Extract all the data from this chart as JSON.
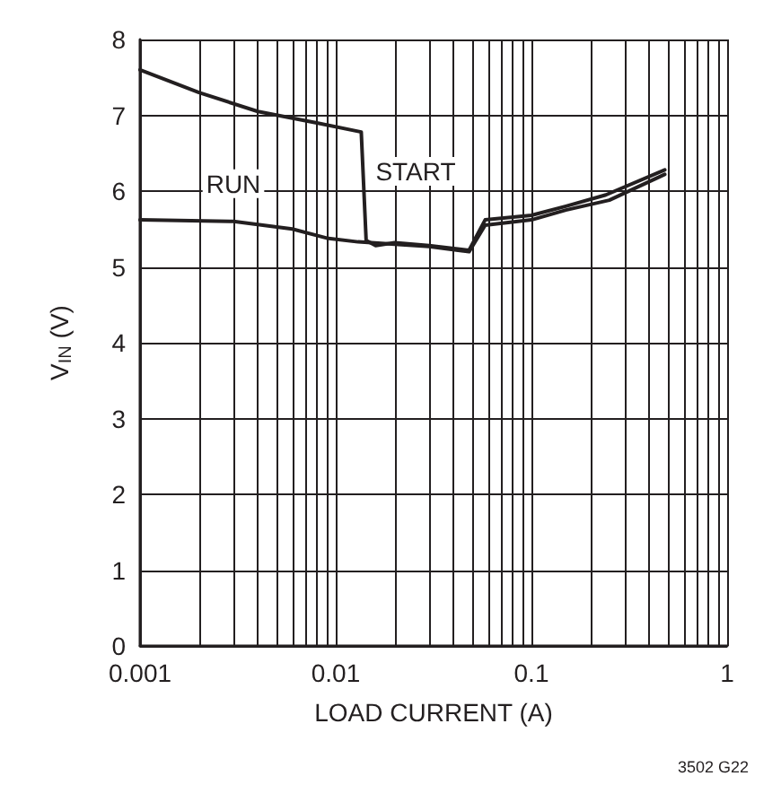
{
  "chart_data": {
    "type": "line",
    "xlabel": "LOAD CURRENT (A)",
    "ylabel": "V$_{IN}$ (V)",
    "log": "x",
    "grid": true,
    "legend": false,
    "marker": "none",
    "line_style": "solid",
    "xlim": [
      0.001,
      1
    ],
    "ylim": [
      0,
      8
    ],
    "xticks": [
      0.001,
      {
        "value": 0.002,
        "label": null
      },
      {
        "value": 0.003,
        "label": null
      },
      {
        "value": 0.004,
        "label": null
      },
      {
        "value": 0.005,
        "label": null
      },
      {
        "value": 0.006,
        "label": null
      },
      {
        "value": 0.007,
        "label": null
      },
      {
        "value": 0.008,
        "label": null
      },
      {
        "value": 0.009,
        "label": null
      },
      0.01,
      {
        "value": 0.02,
        "label": null
      },
      {
        "value": 0.03,
        "label": null
      },
      {
        "value": 0.04,
        "label": null
      },
      {
        "value": 0.05,
        "label": null
      },
      {
        "value": 0.06,
        "label": null
      },
      {
        "value": 0.07,
        "label": null
      },
      {
        "value": 0.08,
        "label": null
      },
      {
        "value": 0.09,
        "label": null
      },
      0.1,
      {
        "value": 0.2,
        "label": null
      },
      {
        "value": 0.3,
        "label": null
      },
      {
        "value": 0.4,
        "label": null
      },
      {
        "value": 0.5,
        "label": null
      },
      {
        "value": 0.6,
        "label": null
      },
      {
        "value": 0.7,
        "label": null
      },
      {
        "value": 0.8,
        "label": null
      },
      {
        "value": 0.9,
        "label": null
      },
      1
    ],
    "yticks": [
      0,
      1,
      2,
      3,
      4,
      5,
      6,
      7,
      8
    ],
    "series": [
      {
        "name": "START",
        "color": "#231f20",
        "x": [
          0.001,
          0.002,
          0.004,
          0.008,
          0.0135,
          0.0143,
          0.016,
          0.02,
          0.03,
          0.048,
          0.058,
          0.1,
          0.15,
          0.24,
          0.48
        ],
        "values": [
          7.6,
          7.3,
          7.05,
          6.9,
          6.78,
          5.35,
          5.28,
          5.32,
          5.28,
          5.22,
          5.62,
          5.68,
          5.8,
          5.95,
          6.28
        ]
      },
      {
        "name": "RUN",
        "color": "#231f20",
        "x": [
          0.001,
          0.003,
          0.006,
          0.009,
          0.013,
          0.02,
          0.03,
          0.048,
          0.058,
          0.1,
          0.15,
          0.25,
          0.48
        ],
        "values": [
          5.62,
          5.6,
          5.5,
          5.38,
          5.33,
          5.3,
          5.27,
          5.2,
          5.55,
          5.62,
          5.75,
          5.88,
          6.22
        ]
      }
    ],
    "annotations": [
      "3502 G22"
    ]
  }
}
